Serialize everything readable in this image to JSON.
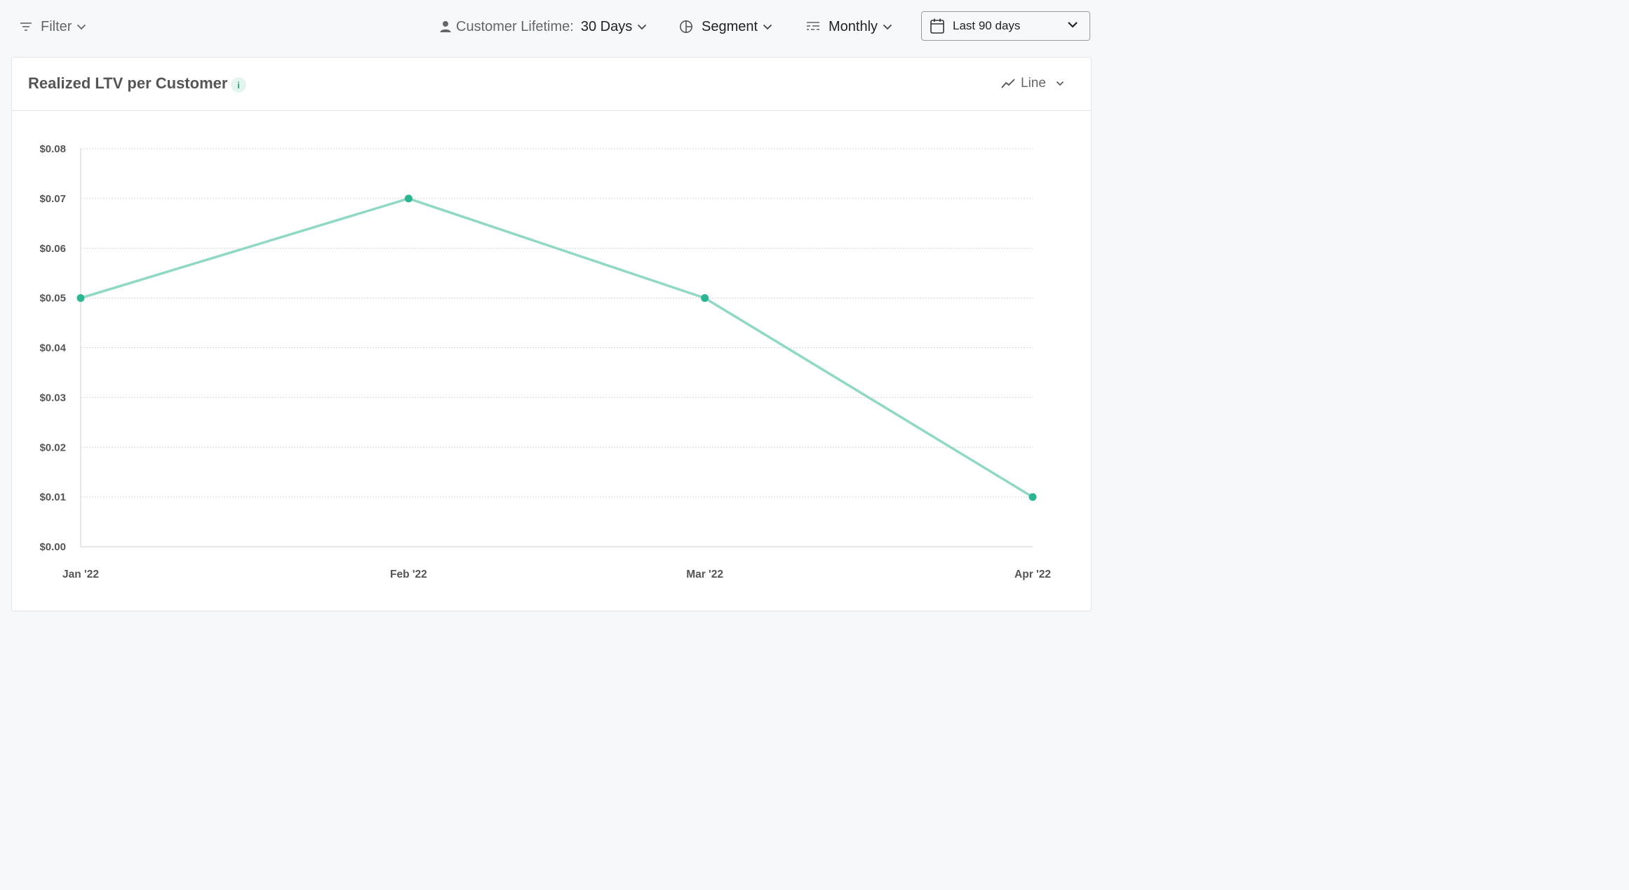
{
  "toolbar": {
    "filter_label": "Filter",
    "lifetime_label": "Customer Lifetime:",
    "lifetime_value": "30 Days",
    "segment_label": "Segment",
    "interval_label": "Monthly",
    "date_range_label": "Last 90 days"
  },
  "card": {
    "title": "Realized LTV per Customer",
    "info_icon_text": "i",
    "chart_type_label": "Line"
  },
  "colors": {
    "line": "#8fd9c4",
    "point": "#2bb590",
    "grid": "#d6d6d6",
    "axis": "#d0d0d0"
  },
  "chart_data": {
    "type": "line",
    "title": "Realized LTV per Customer",
    "categories": [
      "Jan '22",
      "Feb '22",
      "Mar '22",
      "Apr '22"
    ],
    "series": [
      {
        "values": [
          0.05,
          0.07,
          0.05,
          0.01
        ]
      }
    ],
    "ylim": [
      0,
      0.08
    ],
    "yticks": [
      0.0,
      0.01,
      0.02,
      0.03,
      0.04,
      0.05,
      0.06,
      0.07,
      0.08
    ],
    "ytick_labels": [
      "$0.00",
      "$0.01",
      "$0.02",
      "$0.03",
      "$0.04",
      "$0.05",
      "$0.06",
      "$0.07",
      "$0.08"
    ],
    "x_dates": [
      "2022-01-01",
      "2022-02-01",
      "2022-03-01",
      "2022-04-01"
    ],
    "grid": true,
    "legend": "none"
  }
}
